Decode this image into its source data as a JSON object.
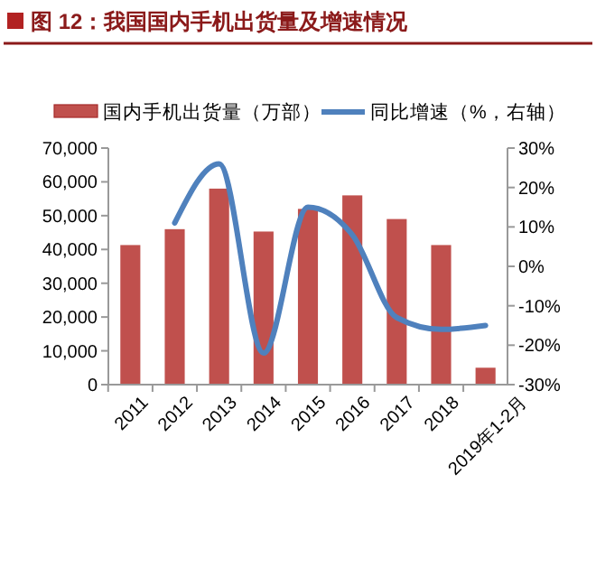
{
  "chart_data": {
    "type": "bar",
    "title": "图 12：我国国内手机出货量及增速情况",
    "categories": [
      "2011",
      "2012",
      "2013",
      "2014",
      "2015",
      "2016",
      "2017",
      "2018",
      "2019年1-2月"
    ],
    "series": [
      {
        "name": "国内手机出货量（万部）",
        "color": "#c0504d",
        "values": [
          41300,
          46000,
          58000,
          45300,
          52000,
          56000,
          49000,
          41300,
          5000
        ]
      },
      {
        "name": "同比增速（%，右轴）",
        "type": "line",
        "axis": "y2",
        "color": "#4f81bd",
        "values": [
          null,
          11,
          26,
          -22,
          15,
          8,
          -13,
          -16,
          -15
        ]
      }
    ],
    "ylim": [
      0,
      70000
    ],
    "yticks": [
      {
        "value": 0,
        "label": "0"
      },
      {
        "value": 10000,
        "label": "10,000"
      },
      {
        "value": 20000,
        "label": "20,000"
      },
      {
        "value": 30000,
        "label": "30,000"
      },
      {
        "value": 40000,
        "label": "40,000"
      },
      {
        "value": 50000,
        "label": "50,000"
      },
      {
        "value": 60000,
        "label": "60,000"
      },
      {
        "value": 70000,
        "label": "70,000"
      }
    ],
    "y2lim": [
      -30,
      30
    ],
    "y2ticks": [
      {
        "value": -30,
        "label": "-30%"
      },
      {
        "value": -20,
        "label": "-20%"
      },
      {
        "value": -10,
        "label": "-10%"
      },
      {
        "value": 0,
        "label": "0%"
      },
      {
        "value": 10,
        "label": "10%"
      },
      {
        "value": 20,
        "label": "20%"
      },
      {
        "value": 30,
        "label": "30%"
      }
    ],
    "legend": "top",
    "grid": false,
    "line_style": "solid",
    "marker": "none"
  }
}
